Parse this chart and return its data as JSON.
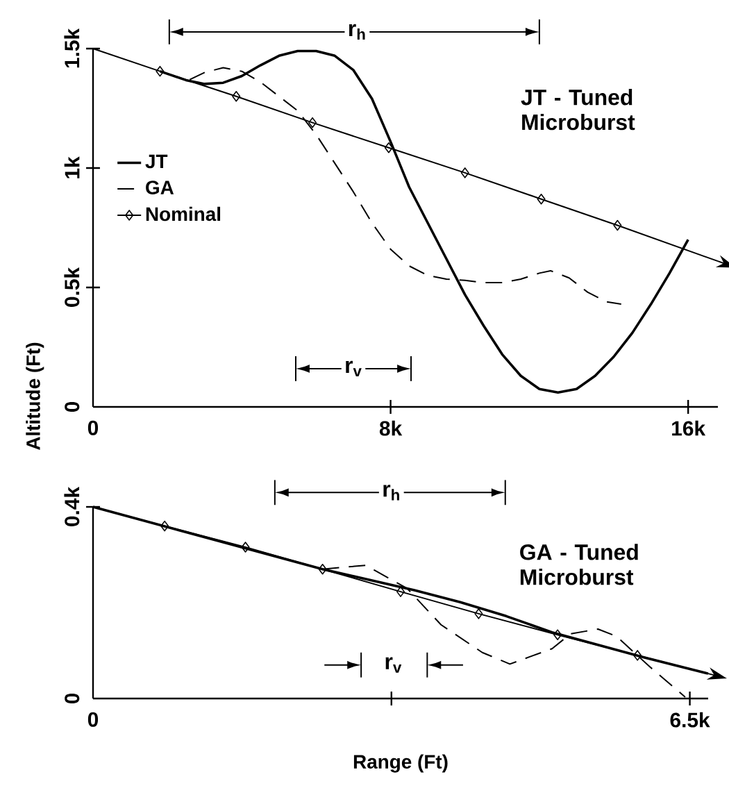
{
  "chart_data": [
    {
      "type": "line",
      "ylabel": "Altitude (Ft)",
      "xlim": [
        0,
        16800
      ],
      "ylim": [
        0,
        1500
      ],
      "xticks": [
        {
          "value": 0,
          "label": "0"
        },
        {
          "value": 8000,
          "label": "8k"
        },
        {
          "value": 16000,
          "label": "16k"
        }
      ],
      "yticks": [
        {
          "value": 0,
          "label": "0"
        },
        {
          "value": 500,
          "label": "0.5k"
        },
        {
          "value": 1000,
          "label": "1k"
        },
        {
          "value": 1500,
          "label": "1.5k"
        }
      ],
      "legend": "left",
      "annotations": [
        "JT - Tuned Microburst",
        "r$_{h}$",
        "r$_{v}$"
      ],
      "series": [
        {
          "name": "JT",
          "color": "#000000",
          "line_style": "solid",
          "marker": "none",
          "x": [
            1800,
            2500,
            3000,
            3500,
            4000,
            4500,
            5000,
            5500,
            6000,
            6500,
            7000,
            7500,
            8000,
            8500,
            9000,
            9500,
            10000,
            10500,
            11000,
            11500,
            12000,
            12500,
            13000,
            13500,
            14000,
            14500,
            15000,
            15500,
            16000
          ],
          "values": [
            1405,
            1368,
            1352,
            1357,
            1385,
            1430,
            1470,
            1490,
            1490,
            1470,
            1410,
            1290,
            1110,
            920,
            770,
            620,
            470,
            340,
            220,
            130,
            75,
            60,
            75,
            130,
            210,
            310,
            430,
            560,
            700
          ]
        },
        {
          "name": "GA",
          "color": "#000000",
          "line_style": "dashed",
          "marker": "none",
          "x": [
            2600,
            3000,
            3500,
            4000,
            4500,
            5000,
            5500,
            6000,
            6500,
            7000,
            7500,
            8000,
            8500,
            9000,
            9500,
            10000,
            10500,
            11000,
            11500,
            12000,
            12300,
            12800,
            13300,
            13800,
            14200
          ],
          "values": [
            1370,
            1400,
            1420,
            1405,
            1360,
            1300,
            1240,
            1140,
            1020,
            900,
            770,
            660,
            590,
            550,
            535,
            530,
            520,
            520,
            535,
            560,
            570,
            540,
            480,
            440,
            430
          ]
        },
        {
          "name": "Nominal",
          "color": "#000000",
          "line_style": "solid",
          "marker": "diamond",
          "x": [
            0,
            1800,
            3850,
            5900,
            7950,
            10000,
            12050,
            14100,
            16800
          ],
          "values": [
            1500,
            1405,
            1300,
            1190,
            1085,
            980,
            870,
            760,
            610
          ]
        }
      ]
    },
    {
      "type": "line",
      "xlabel": "Range (Ft)",
      "xlim": [
        0,
        6700
      ],
      "ylim": [
        0,
        400
      ],
      "xticks": [
        {
          "value": 0,
          "label": "0"
        },
        {
          "value": 3250,
          "label": null
        },
        {
          "value": 6500,
          "label": "6.5k"
        }
      ],
      "yticks": [
        {
          "value": 0,
          "label": "0"
        },
        {
          "value": 400,
          "label": "0.4k"
        }
      ],
      "annotations": [
        "GA - Tuned Microburst",
        "r$_{h}$",
        "r$_{v}$"
      ],
      "series": [
        {
          "color": "#000000",
          "line_style": "solid",
          "marker": "none",
          "x": [
            0,
            2500,
            3000,
            3500,
            4000,
            4500,
            5000,
            5500,
            6000,
            6700
          ],
          "values": [
            400,
            270,
            248,
            226,
            201,
            172,
            138,
            112,
            86,
            52
          ]
        },
        {
          "color": "#000000",
          "line_style": "dashed",
          "marker": "none",
          "x": [
            2500,
            2970,
            3420,
            3790,
            4240,
            4540,
            5000,
            5200,
            5500,
            5700,
            6060,
            6450
          ],
          "values": [
            270,
            278,
            230,
            154,
            96,
            72,
            104,
            135,
            145,
            130,
            67,
            3
          ]
        },
        {
          "color": "#000000",
          "line_style": "solid",
          "marker": "diamond",
          "x": [
            0,
            780,
            1660,
            2500,
            3350,
            4200,
            5060,
            5930,
            6700
          ],
          "values": [
            400,
            360,
            316,
            270,
            223,
            177,
            133,
            90,
            52
          ]
        }
      ]
    }
  ]
}
